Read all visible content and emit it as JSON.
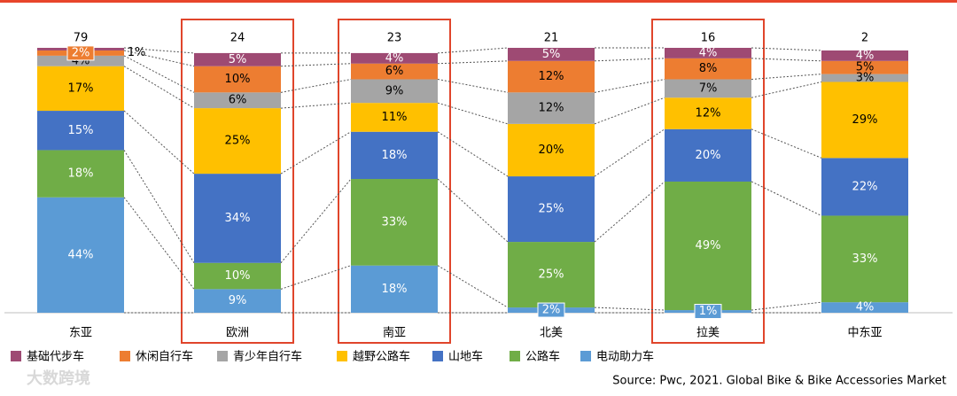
{
  "chart_data": {
    "type": "stacked_bar_percent",
    "categories": [
      "东亚",
      "欧洲",
      "南亚",
      "北美",
      "拉美",
      "中东亚"
    ],
    "totals": [
      79,
      24,
      23,
      21,
      16,
      2
    ],
    "highlight": [
      false,
      true,
      true,
      false,
      true,
      false
    ],
    "ylim": [
      0,
      101
    ],
    "series": [
      {
        "name": "电动助力车",
        "color": "#5b9bd5",
        "label_color": "#ffffff",
        "values": [
          44,
          9,
          18,
          2,
          1,
          4
        ],
        "value_labels": [
          "44%",
          "9%",
          "18%",
          "2%",
          "1%",
          "4%"
        ]
      },
      {
        "name": "公路车",
        "color": "#70ad47",
        "label_color": "#ffffff",
        "values": [
          18,
          10,
          33,
          25,
          49,
          33
        ],
        "value_labels": [
          "18%",
          "10%",
          "33%",
          "25%",
          "49%",
          "33%"
        ]
      },
      {
        "name": "山地车",
        "color": "#4472c4",
        "label_color": "#ffffff",
        "values": [
          15,
          34,
          18,
          25,
          20,
          22
        ],
        "value_labels": [
          "15%",
          "34%",
          "18%",
          "25%",
          "20%",
          "22%"
        ]
      },
      {
        "name": "越野公路车",
        "color": "#ffc000",
        "label_color": "#000000",
        "values": [
          17,
          25,
          11,
          20,
          12,
          29
        ],
        "value_labels": [
          "17%",
          "25%",
          "11%",
          "20%",
          "12%",
          "29%"
        ]
      },
      {
        "name": "青少年自行车",
        "color": "#a5a5a5",
        "label_color": "#000000",
        "values": [
          4,
          6,
          9,
          12,
          7,
          3
        ],
        "value_labels": [
          "4%",
          "6%",
          "9%",
          "12%",
          "7%",
          "3%"
        ]
      },
      {
        "name": "休闲自行车",
        "color": "#ed7d31",
        "label_color": "#000000",
        "values": [
          2,
          10,
          6,
          12,
          8,
          5
        ],
        "value_labels": [
          "2%",
          "10%",
          "6%",
          "12%",
          "8%",
          "5%"
        ]
      },
      {
        "name": "基础代步车",
        "color": "#9e4a73",
        "label_color": "#ffffff",
        "values": [
          1,
          5,
          4,
          5,
          4,
          4
        ],
        "value_labels": [
          "1%",
          "5%",
          "4%",
          "5%",
          "4%",
          "4%"
        ]
      }
    ],
    "source": "Source: Pwc, 2021. Global Bike & Bike Accessories Market",
    "watermark": "大数跨境"
  }
}
